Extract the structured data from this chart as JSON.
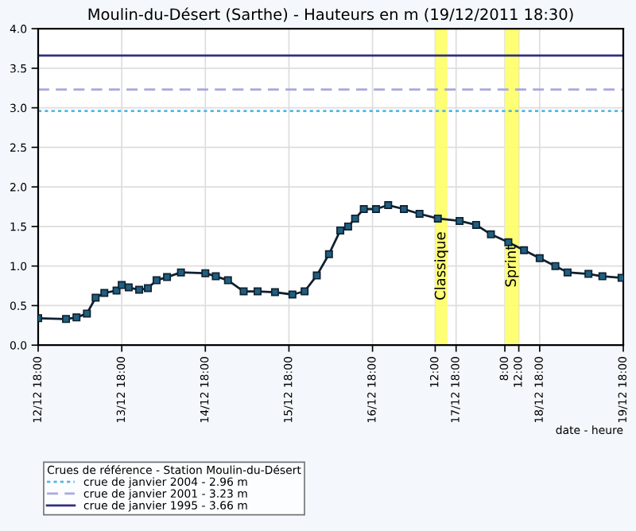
{
  "chart_data": {
    "type": "line",
    "title": "Moulin-du-Désert (Sarthe) - Hauteurs en m (19/12/2011 18:30)",
    "xlabel": "date - heure",
    "legend_title": "Crues de référence - Station Moulin-du-Désert",
    "x": [
      "2011-12-12T18:00",
      "2011-12-13T02:00",
      "2011-12-13T05:00",
      "2011-12-13T08:00",
      "2011-12-13T10:30",
      "2011-12-13T13:00",
      "2011-12-13T16:30",
      "2011-12-13T18:00",
      "2011-12-13T20:00",
      "2011-12-13T23:00",
      "2011-12-14T01:30",
      "2011-12-14T04:00",
      "2011-12-14T07:00",
      "2011-12-14T11:00",
      "2011-12-14T18:00",
      "2011-12-14T21:00",
      "2011-12-15T00:30",
      "2011-12-15T05:00",
      "2011-12-15T09:00",
      "2011-12-15T14:00",
      "2011-12-15T19:00",
      "2011-12-15T22:30",
      "2011-12-16T02:00",
      "2011-12-16T05:30",
      "2011-12-16T08:45",
      "2011-12-16T11:00",
      "2011-12-16T13:00",
      "2011-12-16T15:30",
      "2011-12-16T19:00",
      "2011-12-16T22:30",
      "2011-12-17T03:00",
      "2011-12-17T07:30",
      "2011-12-17T12:45",
      "2011-12-17T19:00",
      "2011-12-17T23:45",
      "2011-12-18T04:00",
      "2011-12-18T09:00",
      "2011-12-18T13:30",
      "2011-12-18T18:00",
      "2011-12-18T22:30",
      "2011-12-19T02:00",
      "2011-12-19T08:00",
      "2011-12-19T12:00",
      "2011-12-19T17:30"
    ],
    "series": [
      {
        "color": "#1f5f7f",
        "values": [
          0.34,
          0.33,
          0.35,
          0.4,
          0.6,
          0.66,
          0.69,
          0.76,
          0.73,
          0.7,
          0.72,
          0.82,
          0.86,
          0.92,
          0.91,
          0.87,
          0.82,
          0.68,
          0.68,
          0.67,
          0.64,
          0.68,
          0.88,
          1.15,
          1.45,
          1.5,
          1.6,
          1.72,
          1.72,
          1.77,
          1.72,
          1.66,
          1.6,
          1.57,
          1.52,
          1.4,
          1.3,
          1.2,
          1.1,
          1.0,
          0.92,
          0.9,
          0.87,
          0.85
        ]
      }
    ],
    "xlim": [
      "2011-12-12T18:00",
      "2011-12-19T18:00"
    ],
    "xticks": [
      {
        "value": "2011-12-12T18:00",
        "label": "12/12 18:00"
      },
      {
        "value": "2011-12-13T18:00",
        "label": "13/12 18:00"
      },
      {
        "value": "2011-12-14T18:00",
        "label": "14/12 18:00"
      },
      {
        "value": "2011-12-15T18:00",
        "label": "15/12 18:00"
      },
      {
        "value": "2011-12-16T18:00",
        "label": "16/12 18:00"
      },
      {
        "value": "2011-12-17T12:00",
        "label": "12:00"
      },
      {
        "value": "2011-12-17T18:00",
        "label": "17/12 18:00"
      },
      {
        "value": "2011-12-18T08:00",
        "label": "8:00"
      },
      {
        "value": "2011-12-18T12:00",
        "label": "12:00"
      },
      {
        "value": "2011-12-18T18:00",
        "label": "18/12 18:00"
      },
      {
        "value": "2011-12-19T18:00",
        "label": "19/12 18:00"
      }
    ],
    "ylim": [
      0,
      4
    ],
    "yticks": [
      {
        "value": 0,
        "label": "0.0"
      },
      {
        "value": 0.5,
        "label": "0.5"
      },
      {
        "value": 1,
        "label": "1.0"
      },
      {
        "value": 1.5,
        "label": "1.5"
      },
      {
        "value": 2,
        "label": "2.0"
      },
      {
        "value": 2.5,
        "label": "2.5"
      },
      {
        "value": 3,
        "label": "3.0"
      },
      {
        "value": 3.5,
        "label": "3.5"
      },
      {
        "value": 4,
        "label": "4.0"
      }
    ],
    "ref_lines": [
      {
        "axis": "y",
        "value": 2.96,
        "label": "crue de janvier 2004 - 2.96 m",
        "color": "#4fb8e8",
        "line_style": "dotted"
      },
      {
        "axis": "y",
        "value": 3.23,
        "label": "crue de janvier 2001 - 3.23 m",
        "color": "#a8a8e0",
        "line_style": "dashed"
      },
      {
        "axis": "y",
        "value": 3.66,
        "label": "crue de janvier 1995 - 3.66 m",
        "color": "#303080",
        "line_style": "solid"
      }
    ],
    "bands": [
      {
        "axis": "x",
        "from": "2011-12-17T12:00",
        "to": "2011-12-17T15:30",
        "label": "Classique",
        "color": "#ffff66"
      },
      {
        "axis": "x",
        "from": "2011-12-18T08:00",
        "to": "2011-12-18T12:00",
        "label": "Sprint",
        "color": "#ffff66"
      }
    ],
    "grid": true,
    "legend": "bottom",
    "marker": "square",
    "line_style": "solid"
  }
}
